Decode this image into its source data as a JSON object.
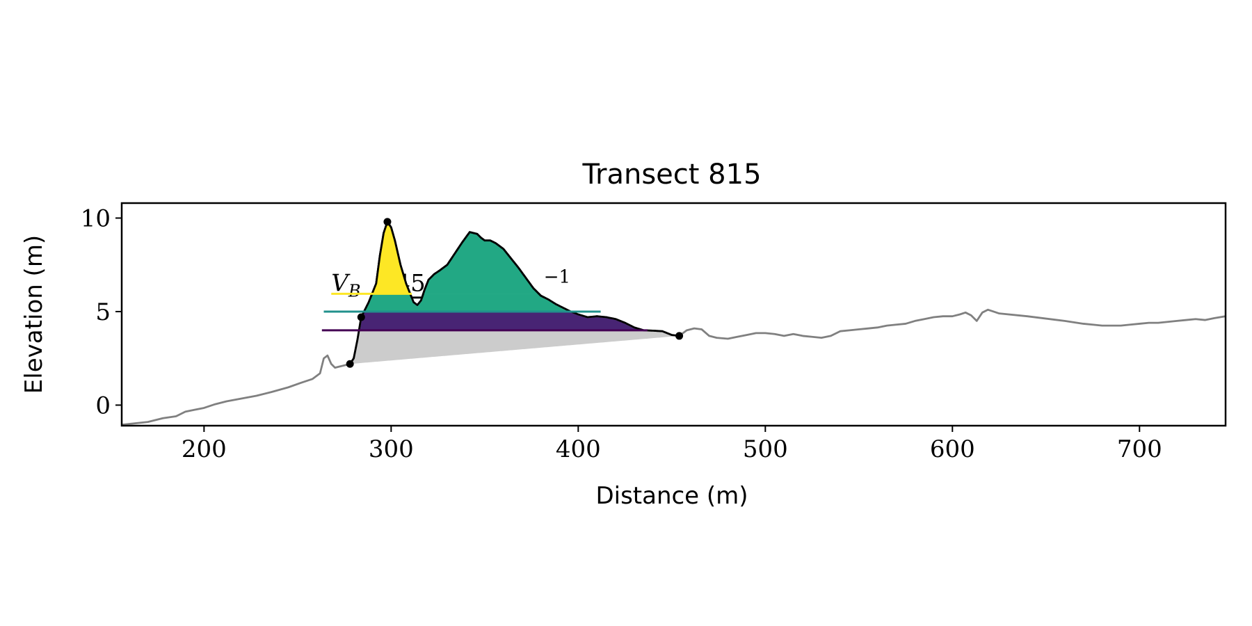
{
  "chart_data": {
    "type": "area",
    "title": "Transect 815",
    "xlabel": "Distance (m)",
    "ylabel": "Elevation (m)",
    "xlim": [
      156,
      746
    ],
    "ylim": [
      -1.1,
      10.8
    ],
    "x_ticks": [
      200,
      300,
      400,
      500,
      600,
      700
    ],
    "y_ticks": [
      0,
      5,
      10
    ],
    "x_tick_labels": [
      "200",
      "300",
      "400",
      "500",
      "600",
      "700"
    ],
    "y_tick_labels": [
      "0",
      "5",
      "10"
    ],
    "grid": false,
    "colors": {
      "profile": "#808080",
      "dune_outline": "#000000",
      "base_fill": "#cccccc",
      "level_low": "#440154",
      "level_mid": "#21918c",
      "level_high": "#fde725",
      "fill_low": "#482474",
      "fill_mid": "#22a884",
      "fill_high": "#fde725"
    },
    "annotation": {
      "symbol": "V",
      "subscript": "B",
      "value_visible": "45",
      "superscript": "−1"
    },
    "levels": [
      {
        "name": "low",
        "y": 4.0,
        "x_start": 263,
        "x_end": 437
      },
      {
        "name": "mid",
        "y": 5.0,
        "x_start": 264,
        "x_end": 412
      },
      {
        "name": "high",
        "y": 5.95,
        "x_start": 268,
        "x_end": 311
      }
    ],
    "key_points": [
      {
        "x": 278,
        "y": 2.2
      },
      {
        "x": 284,
        "y": 4.7
      },
      {
        "x": 298,
        "y": 9.8
      },
      {
        "x": 454,
        "y": 3.7
      }
    ],
    "base_line": {
      "x": [
        278,
        454
      ],
      "y": [
        2.2,
        3.7
      ]
    },
    "profile": {
      "x": [
        156,
        170,
        178,
        185,
        190,
        195,
        200,
        206,
        212,
        220,
        228,
        236,
        245,
        252,
        258,
        262,
        264,
        266,
        268,
        270,
        272,
        274,
        276,
        278,
        280,
        282,
        284,
        288,
        292,
        294,
        296,
        298,
        300,
        302,
        305,
        308,
        312,
        314,
        316,
        318,
        320,
        323,
        326,
        330,
        334,
        338,
        342,
        344,
        346,
        348,
        350,
        353,
        356,
        360,
        364,
        368,
        372,
        376,
        380,
        384,
        388,
        392,
        396,
        400,
        405,
        410,
        415,
        420,
        425,
        430,
        435,
        440,
        445,
        450,
        454,
        458,
        462,
        466,
        470,
        474,
        480,
        485,
        490,
        495,
        500,
        505,
        510,
        515,
        520,
        525,
        530,
        535,
        540,
        545,
        550,
        555,
        560,
        565,
        570,
        575,
        580,
        585,
        590,
        595,
        600,
        604,
        607,
        610,
        613,
        616,
        619,
        622,
        625,
        640,
        660,
        670,
        675,
        680,
        690,
        695,
        700,
        705,
        710,
        715,
        720,
        725,
        730,
        735,
        740,
        746
      ],
      "y": [
        -1.05,
        -0.9,
        -0.7,
        -0.6,
        -0.35,
        -0.25,
        -0.15,
        0.05,
        0.2,
        0.35,
        0.5,
        0.7,
        0.95,
        1.2,
        1.4,
        1.7,
        2.5,
        2.65,
        2.2,
        2.0,
        2.05,
        2.1,
        2.15,
        2.2,
        2.5,
        3.5,
        4.7,
        5.5,
        6.5,
        8.0,
        9.2,
        9.8,
        9.5,
        8.8,
        7.5,
        6.5,
        5.5,
        5.35,
        5.6,
        6.2,
        6.7,
        7.0,
        7.2,
        7.5,
        8.1,
        8.7,
        9.25,
        9.2,
        9.15,
        8.95,
        8.8,
        8.8,
        8.65,
        8.35,
        7.85,
        7.35,
        6.8,
        6.25,
        5.85,
        5.65,
        5.4,
        5.2,
        5.0,
        4.85,
        4.7,
        4.75,
        4.7,
        4.6,
        4.4,
        4.15,
        4.0,
        3.98,
        3.95,
        3.75,
        3.7,
        4.0,
        4.1,
        4.05,
        3.7,
        3.6,
        3.55,
        3.65,
        3.75,
        3.85,
        3.85,
        3.8,
        3.7,
        3.8,
        3.7,
        3.65,
        3.6,
        3.7,
        3.95,
        4.0,
        4.05,
        4.1,
        4.15,
        4.25,
        4.3,
        4.35,
        4.5,
        4.6,
        4.7,
        4.75,
        4.75,
        4.85,
        4.95,
        4.8,
        4.5,
        4.95,
        5.1,
        5.0,
        4.9,
        4.75,
        4.5,
        4.35,
        4.3,
        4.25,
        4.25,
        4.3,
        4.35,
        4.4,
        4.4,
        4.45,
        4.5,
        4.55,
        4.6,
        4.55,
        4.65,
        4.75
      ]
    }
  }
}
